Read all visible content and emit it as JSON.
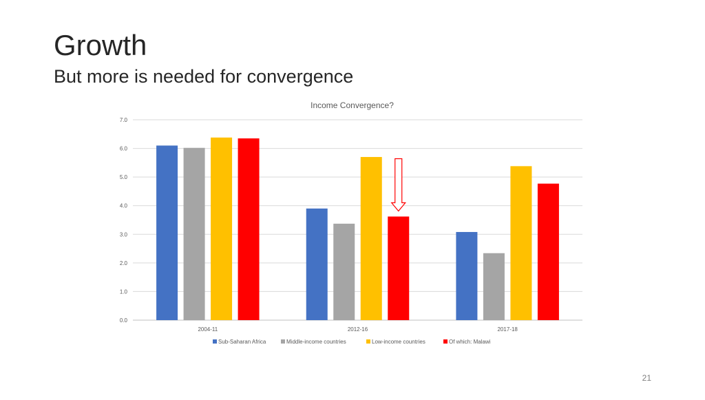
{
  "slide": {
    "title": "Growth",
    "subtitle": "But more is needed for convergence",
    "page_number": "21"
  },
  "chart_data": {
    "type": "bar",
    "title": "Income Convergence?",
    "xlabel": "",
    "ylabel": "",
    "ylim": [
      0,
      7
    ],
    "yticks": [
      "0.0",
      "1.0",
      "2.0",
      "3.0",
      "4.0",
      "5.0",
      "6.0",
      "7.0"
    ],
    "grid": true,
    "legend_position": "bottom",
    "categories": [
      "2004-11",
      "2012-16",
      "2017-18"
    ],
    "series": [
      {
        "name": "Sub-Saharan Africa",
        "color": "#4472C4",
        "values": [
          6.1,
          3.9,
          3.08
        ]
      },
      {
        "name": "Middle-income countries",
        "color": "#A5A5A5",
        "values": [
          6.02,
          3.37,
          2.34
        ]
      },
      {
        "name": "Low-income countries",
        "color": "#FFC000",
        "values": [
          6.38,
          5.7,
          5.38
        ]
      },
      {
        "name": "Of which: Malawi",
        "color": "#FF0000",
        "values": [
          6.35,
          3.62,
          4.77
        ]
      }
    ],
    "annotation": {
      "type": "down-arrow",
      "target_series": 3,
      "target_category": 1,
      "color": "#FF0000"
    }
  }
}
